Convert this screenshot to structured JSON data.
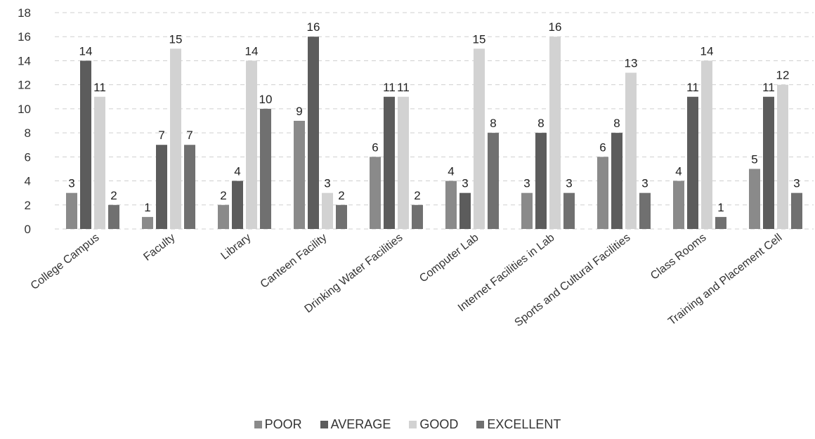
{
  "chart_data": {
    "type": "bar",
    "categories": [
      "College Campus",
      "Faculty",
      "Library",
      "Canteen Facility",
      "Drinking Water Facilities",
      "Computer Lab",
      "Internet Facilities in Lab",
      "Sports and Cultural Facilities",
      "Class Rooms",
      "Training and Placement Cell"
    ],
    "series": [
      {
        "name": "POOR",
        "color": "#8a8a8a",
        "values": [
          3,
          1,
          2,
          9,
          6,
          4,
          3,
          6,
          4,
          5
        ]
      },
      {
        "name": "AVERAGE",
        "color": "#5c5c5c",
        "values": [
          14,
          7,
          4,
          16,
          11,
          3,
          8,
          8,
          11,
          11
        ]
      },
      {
        "name": "GOOD",
        "color": "#d2d2d2",
        "values": [
          11,
          15,
          14,
          3,
          11,
          15,
          16,
          13,
          14,
          12
        ]
      },
      {
        "name": "EXCELLENT",
        "color": "#707070",
        "values": [
          2,
          7,
          10,
          2,
          2,
          8,
          3,
          3,
          1,
          3
        ]
      }
    ],
    "yticks": [
      "0",
      "2",
      "4",
      "6",
      "8",
      "10",
      "12",
      "14",
      "16",
      "18"
    ],
    "ylim": [
      0,
      18
    ],
    "grid": true,
    "legend_position": "bottom"
  }
}
